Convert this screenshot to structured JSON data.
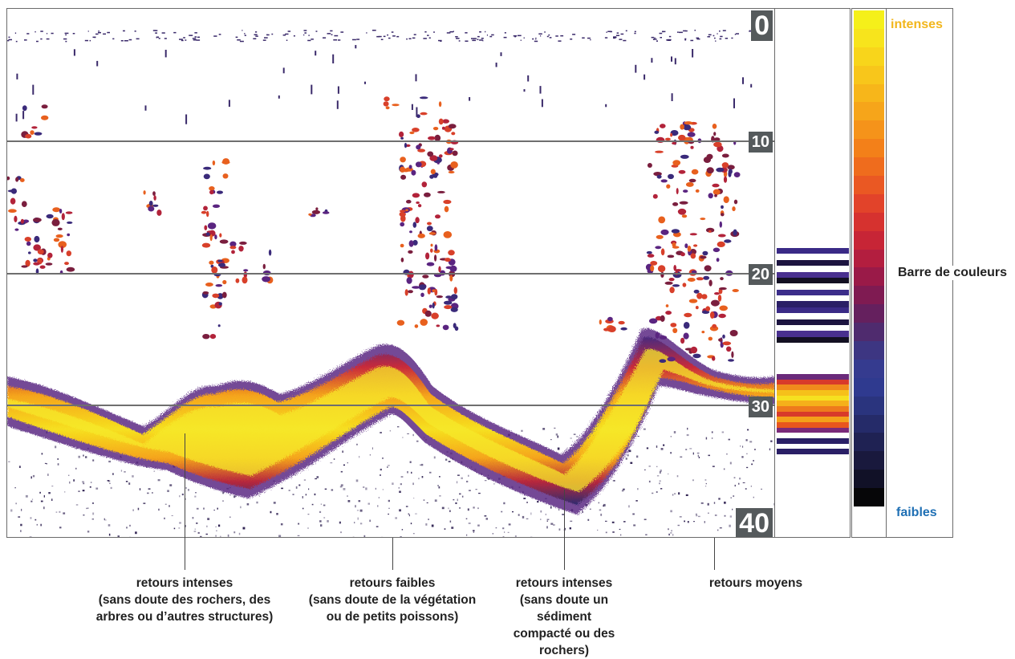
{
  "depth_scale": {
    "labels": [
      "0",
      "10",
      "20",
      "30",
      "40"
    ]
  },
  "color_bar": {
    "top_label": "intenses",
    "middle_label": "Barre de couleurs",
    "bottom_label": "faibles",
    "top_label_color": "#f2b61c",
    "bottom_label_color": "#1e6fb4",
    "colors": [
      "#f5f01a",
      "#f7e41c",
      "#f8d51b",
      "#f8c61b",
      "#f7b61a",
      "#f6a51a",
      "#f5931a",
      "#f38019",
      "#ef6c1d",
      "#ea5823",
      "#e2432a",
      "#d6322f",
      "#c72536",
      "#b31e3f",
      "#9a1a48",
      "#7f1b52",
      "#65205e",
      "#4f2b6e",
      "#3d3682",
      "#353b8f",
      "#2f3a8f",
      "#2a347e",
      "#252b69",
      "#1f2253",
      "#19193d",
      "#111127",
      "#060608"
    ]
  },
  "legend_stripes": {
    "colors": [
      "#3a2a86",
      "#ffffff",
      "#1c1440",
      "#ffffff",
      "#49308f",
      "#131022",
      "#ffffff",
      "#3b2d8a",
      "#ffffff",
      "#2a1f66"
    ]
  },
  "callouts": [
    {
      "lines": [
        "retours intenses",
        "(sans doute des rochers, des",
        "arbres ou d’autres structures)"
      ]
    },
    {
      "lines": [
        "retours faibles",
        "(sans doute de la végétation",
        "ou de petits poissons)"
      ]
    },
    {
      "lines": [
        "retours intenses",
        "(sans doute un sédiment",
        "compacté ou des rochers)"
      ]
    },
    {
      "lines": [
        "retours moyens"
      ]
    }
  ]
}
